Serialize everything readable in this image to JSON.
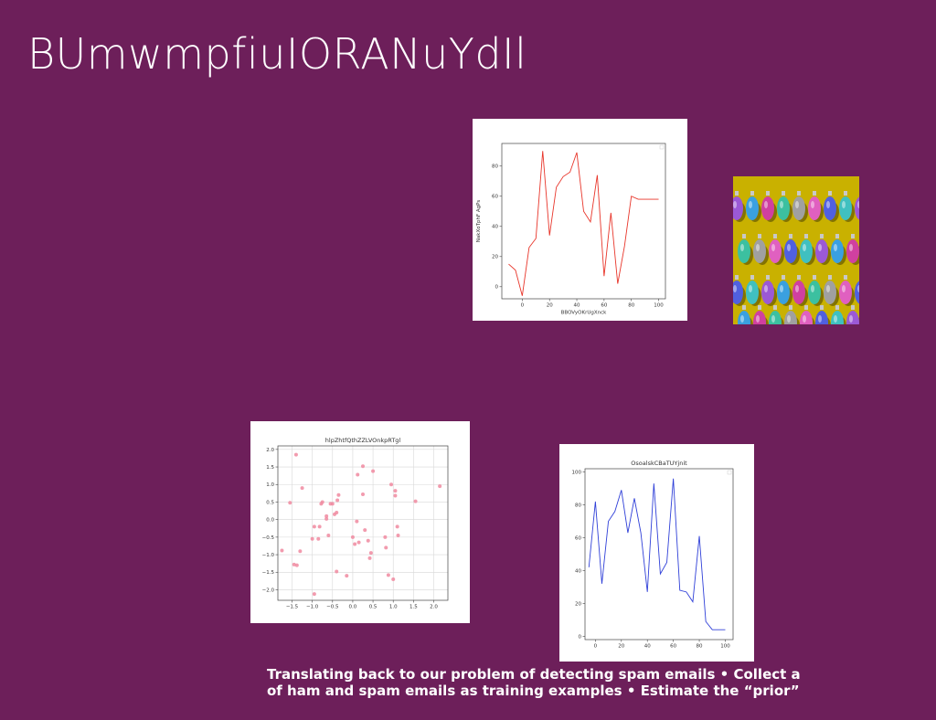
{
  "slide": {
    "title": "BUmwmpfiuIORANuYdIl",
    "body_line1": "Translating back to our problem of detecting spam emails • Collect a",
    "body_line2": "of ham and spam emails as training examples • Estimate the “prior”"
  },
  "images": {
    "ornaments": {
      "icon": "christmas-ornaments-photo",
      "background": "#c9b100",
      "colors": [
        "#9b59d6",
        "#3aa0e0",
        "#d040a0",
        "#3cc0a0",
        "#a0a0a0",
        "#e060c0",
        "#5060e0",
        "#40c0c0"
      ]
    }
  },
  "chart_data": [
    {
      "type": "line",
      "title": "",
      "xlabel": "BBOVyOKrUgXnck",
      "ylabel": "NakXoTphF AgPs",
      "color": "#e8352a",
      "legend": "top-right (empty box)",
      "xlim": [
        -15,
        105
      ],
      "ylim": [
        -8,
        95
      ],
      "xticks": [
        0,
        20,
        40,
        60,
        80,
        100
      ],
      "yticks": [
        0,
        20,
        40,
        60,
        80
      ],
      "x": [
        -10,
        -5,
        0,
        5,
        10,
        15,
        20,
        25,
        30,
        35,
        40,
        45,
        50,
        55,
        60,
        65,
        70,
        75,
        80,
        85,
        90,
        95,
        100
      ],
      "y": [
        15,
        11,
        -6,
        26,
        32,
        90,
        34,
        66,
        73,
        76,
        89,
        50,
        43,
        74,
        7,
        49,
        2,
        27,
        60,
        58,
        58,
        58,
        58
      ]
    },
    {
      "type": "scatter",
      "title": "hlpZhtfQthZZLVOnkpRTgl",
      "xlabel": "",
      "ylabel": "",
      "color": "#f08aa0",
      "grid": true,
      "xlim": [
        -1.85,
        2.35
      ],
      "ylim": [
        -2.3,
        2.1
      ],
      "xticks": [
        -1.5,
        -1.0,
        -0.5,
        0.0,
        0.5,
        1.0,
        1.5,
        2.0
      ],
      "yticks": [
        -2.0,
        -1.5,
        -1.0,
        -0.5,
        0.0,
        0.5,
        1.0,
        1.5,
        2.0
      ],
      "xtick_labels": [
        "−1.5",
        "−1.0",
        "−0.5",
        "0.0",
        "0.5",
        "1.0",
        "1.5",
        "2.0"
      ],
      "ytick_labels": [
        "−2.0",
        "−1.5",
        "−1.0",
        "−0.5",
        "0.0",
        "0.5",
        "1.0",
        "1.5",
        "2.0"
      ],
      "points": [
        [
          -1.4,
          1.85
        ],
        [
          -1.55,
          0.48
        ],
        [
          -1.25,
          0.9
        ],
        [
          -1.3,
          -0.9
        ],
        [
          -1.45,
          -1.28
        ],
        [
          -1.75,
          -0.88
        ],
        [
          -1.38,
          -1.3
        ],
        [
          -1.0,
          -0.55
        ],
        [
          -0.95,
          -0.2
        ],
        [
          -0.85,
          -0.55
        ],
        [
          -0.82,
          -0.2
        ],
        [
          -0.78,
          0.45
        ],
        [
          -0.75,
          0.5
        ],
        [
          -0.65,
          0.02
        ],
        [
          -0.6,
          -0.45
        ],
        [
          -0.55,
          0.45
        ],
        [
          -0.5,
          0.45
        ],
        [
          -0.45,
          0.15
        ],
        [
          -0.4,
          0.2
        ],
        [
          -0.38,
          0.55
        ],
        [
          -0.35,
          0.7
        ],
        [
          -0.65,
          0.1
        ],
        [
          -0.95,
          -2.12
        ],
        [
          -0.4,
          -1.48
        ],
        [
          -0.15,
          -1.6
        ],
        [
          0.0,
          -0.5
        ],
        [
          0.05,
          -0.7
        ],
        [
          0.12,
          1.28
        ],
        [
          0.1,
          -0.05
        ],
        [
          0.15,
          -0.65
        ],
        [
          0.25,
          0.72
        ],
        [
          0.3,
          -0.3
        ],
        [
          0.38,
          -0.6
        ],
        [
          0.25,
          1.52
        ],
        [
          0.45,
          -0.95
        ],
        [
          0.42,
          -1.1
        ],
        [
          0.5,
          1.38
        ],
        [
          0.8,
          -0.5
        ],
        [
          0.82,
          -0.8
        ],
        [
          0.88,
          -1.58
        ],
        [
          1.0,
          -1.7
        ],
        [
          1.05,
          0.82
        ],
        [
          0.95,
          1.0
        ],
        [
          1.05,
          0.68
        ],
        [
          1.1,
          -0.2
        ],
        [
          1.12,
          -0.45
        ],
        [
          1.55,
          0.52
        ],
        [
          2.15,
          0.95
        ]
      ]
    },
    {
      "type": "line",
      "title": "OsoalskCBaTUYjnit",
      "xlabel": "",
      "ylabel": "",
      "color": "#3040d8",
      "legend": "top-right (empty box)",
      "xlim": [
        -8,
        106
      ],
      "ylim": [
        -2,
        102
      ],
      "xticks": [
        0,
        20,
        40,
        60,
        80,
        100
      ],
      "yticks": [
        0,
        20,
        40,
        60,
        80,
        100
      ],
      "x": [
        -5,
        0,
        5,
        10,
        15,
        20,
        25,
        30,
        35,
        40,
        45,
        50,
        55,
        60,
        65,
        70,
        75,
        80,
        85,
        90,
        95,
        100
      ],
      "y": [
        42,
        82,
        32,
        70,
        76,
        89,
        63,
        84,
        63,
        27,
        93,
        38,
        45,
        96,
        28,
        27,
        21,
        61,
        9,
        4,
        4,
        4
      ]
    }
  ]
}
